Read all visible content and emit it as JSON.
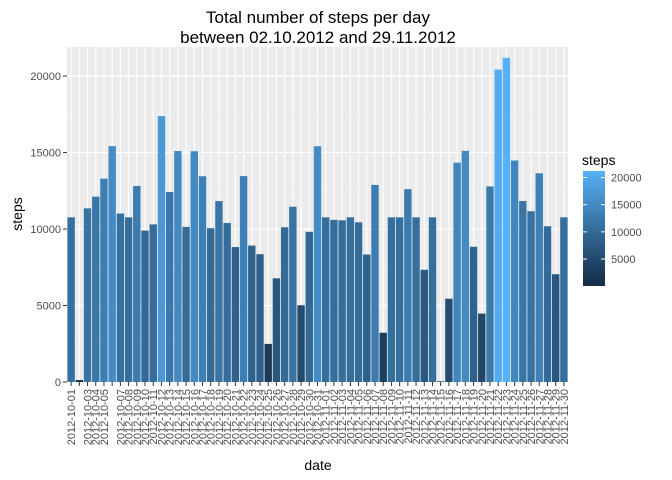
{
  "chart_data": {
    "type": "bar",
    "title": [
      "Total number of steps per day",
      "between 02.10.2012 and 29.11.2012"
    ],
    "xlabel": "date",
    "ylabel": "steps",
    "ylim": [
      0,
      21900
    ],
    "yticks": [
      0,
      5000,
      10000,
      15000,
      20000
    ],
    "grid": true,
    "legend": {
      "title": "steps",
      "placement": "right",
      "labels": [
        5000,
        10000,
        15000,
        20000
      ],
      "low_color": "#132B43",
      "high_color": "#56B1F7",
      "min": 41,
      "max": 21194
    },
    "categories": [
      "2012-10-01",
      "2012-10-02",
      "2012-10-03",
      "2012-10-04",
      "2012-10-05",
      "2012-10-06",
      "2012-10-07",
      "2012-10-08",
      "2012-10-09",
      "2012-10-10",
      "2012-10-11",
      "2012-10-12",
      "2012-10-13",
      "2012-10-14",
      "2012-10-15",
      "2012-10-16",
      "2012-10-17",
      "2012-10-18",
      "2012-10-19",
      "2012-10-20",
      "2012-10-21",
      "2012-10-22",
      "2012-10-23",
      "2012-10-24",
      "2012-10-25",
      "2012-10-26",
      "2012-10-27",
      "2012-10-28",
      "2012-10-29",
      "2012-10-30",
      "2012-10-31",
      "2012-11-01",
      "2012-11-02",
      "2012-11-03",
      "2012-11-04",
      "2012-11-05",
      "2012-11-06",
      "2012-11-07",
      "2012-11-08",
      "2012-11-09",
      "2012-11-10",
      "2012-11-11",
      "2012-11-12",
      "2012-11-13",
      "2012-11-14",
      "2012-11-15",
      "2012-11-16",
      "2012-11-17",
      "2012-11-18",
      "2012-11-19",
      "2012-11-20",
      "2012-11-21",
      "2012-11-22",
      "2012-11-23",
      "2012-11-24",
      "2012-11-25",
      "2012-11-26",
      "2012-11-27",
      "2012-11-28",
      "2012-11-29",
      "2012-11-30"
    ],
    "tick_labels": [
      "2012-10-01",
      "2012-10-03",
      "2012-10-04",
      "2012-10-05",
      "2012-10-07",
      "2012-10-08",
      "2012-10-09",
      "2012-10-10",
      "2012-10-11",
      "2012-10-12",
      "2012-10-13",
      "2012-10-14",
      "2012-10-15",
      "2012-10-16",
      "2012-10-17",
      "2012-10-18",
      "2012-10-19",
      "2012-10-20",
      "2012-10-21",
      "2012-10-22",
      "2012-10-23",
      "2012-10-24",
      "2012-10-25",
      "2012-10-26",
      "2012-10-27",
      "2012-10-28",
      "2012-10-29",
      "2012-10-30",
      "2012-10-31",
      "2012-11-01",
      "2012-11-02",
      "2012-11-03",
      "2012-11-04",
      "2012-11-05",
      "2012-11-06",
      "2012-11-07",
      "2012-11-08",
      "2012-11-09",
      "2012-11-10",
      "2012-11-11",
      "2012-11-12",
      "2012-11-13",
      "2012-11-14",
      "2012-11-15",
      "2012-11-16",
      "2012-11-17",
      "2012-11-18",
      "2012-11-19",
      "2012-11-20",
      "2012-11-21",
      "2012-11-22",
      "2012-11-23",
      "2012-11-24",
      "2012-11-25",
      "2012-11-26",
      "2012-11-27",
      "2012-11-28",
      "2012-11-29",
      "2012-11-30"
    ],
    "values": [
      10766,
      126,
      11352,
      12116,
      13294,
      15420,
      11015,
      10766,
      12811,
      9900,
      10304,
      17382,
      12426,
      15098,
      10139,
      15084,
      13452,
      10056,
      11829,
      10395,
      8821,
      13460,
      8918,
      8355,
      2492,
      6778,
      10119,
      11458,
      5018,
      9819,
      15414,
      10766,
      10600,
      10571,
      10766,
      10439,
      8334,
      12883,
      3219,
      10766,
      10766,
      12608,
      10765,
      7336,
      10766,
      41,
      5441,
      14339,
      15110,
      8841,
      4472,
      12787,
      20427,
      21194,
      14478,
      11834,
      11162,
      13646,
      10183,
      7047,
      10766
    ]
  }
}
